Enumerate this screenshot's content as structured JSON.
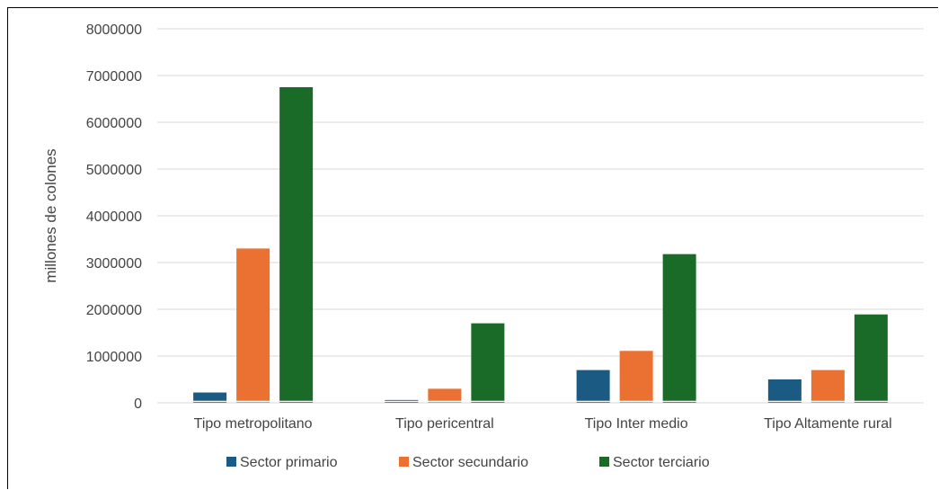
{
  "chart_data": {
    "type": "bar",
    "title": "",
    "xlabel": "",
    "ylabel": "millones de colones",
    "ylim": [
      0,
      8000000
    ],
    "yticks": [
      "0",
      "1000000",
      "2000000",
      "3000000",
      "4000000",
      "5000000",
      "6000000",
      "7000000",
      "8000000"
    ],
    "categories": [
      "Tipo metropolitano",
      "Tipo pericentral",
      "Tipo Inter medio",
      "Tipo Altamente rural"
    ],
    "series": [
      {
        "name": "Sector primario",
        "color": "#1a5a83",
        "values": [
          220000,
          60000,
          700000,
          500000
        ]
      },
      {
        "name": "Sector secundario",
        "color": "#ea7131",
        "values": [
          3300000,
          300000,
          1110000,
          700000
        ]
      },
      {
        "name": "Sector terciario",
        "color": "#1b6b28",
        "values": [
          6750000,
          1700000,
          3180000,
          1890000
        ]
      }
    ],
    "grid": true,
    "legend_position": "bottom"
  }
}
